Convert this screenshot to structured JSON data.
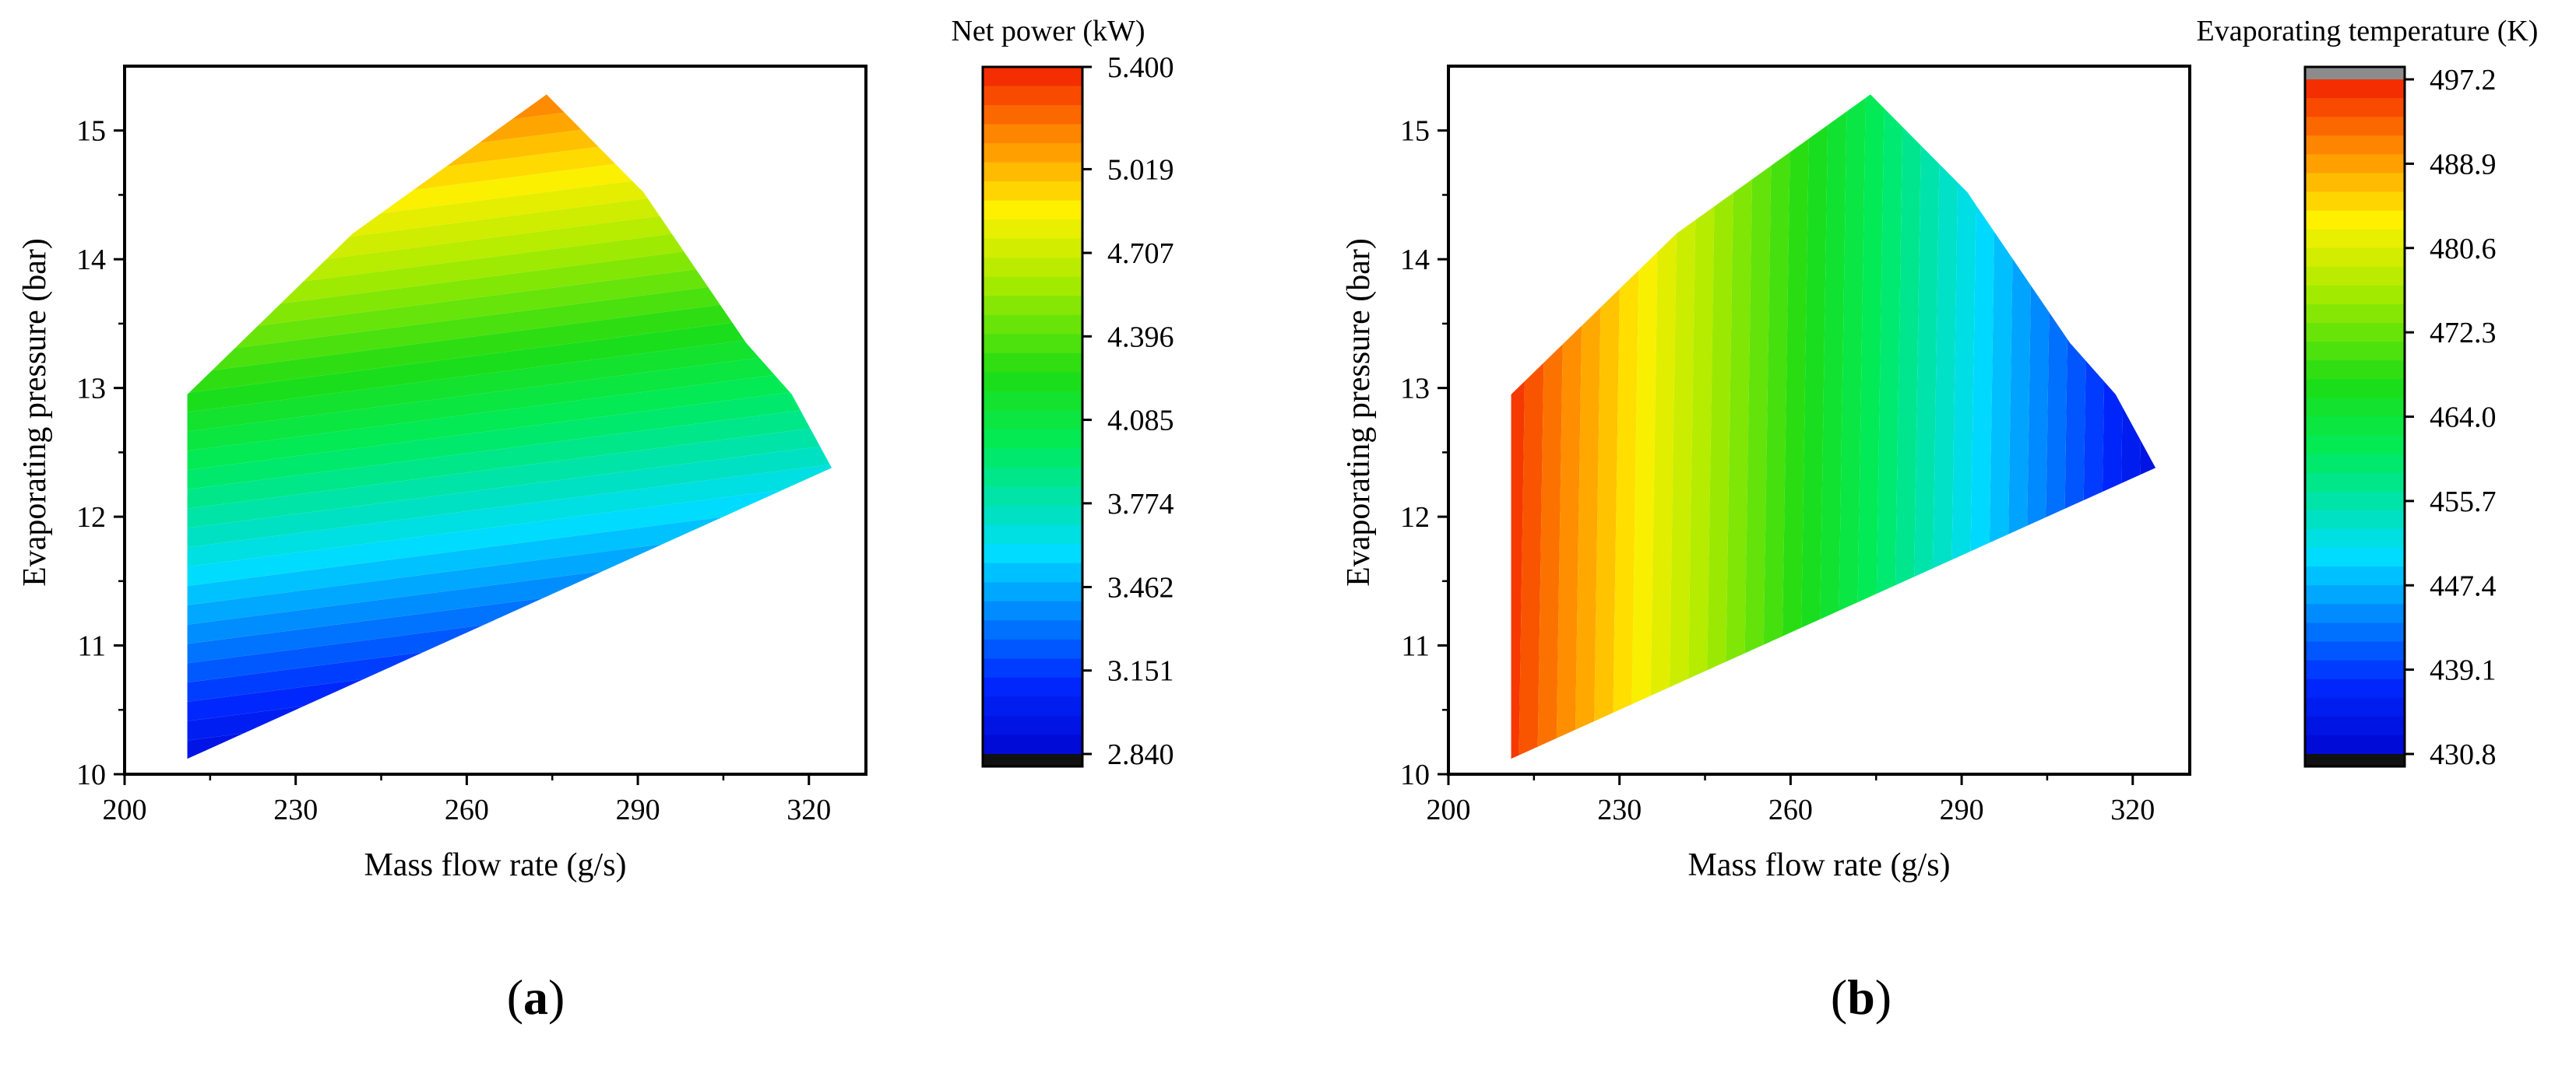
{
  "figure": {
    "panel_labels": [
      {
        "open": "(",
        "letter": "a",
        "close": ")"
      },
      {
        "open": "(",
        "letter": "b",
        "close": ")"
      }
    ]
  },
  "chart_data": [
    {
      "type": "heatmap",
      "panel": "a",
      "xlabel": "Mass flow rate (g/s)",
      "ylabel": "Evaporating pressure (bar)",
      "xlim": [
        200,
        330
      ],
      "ylim": [
        10,
        15.5
      ],
      "xticks": [
        200,
        230,
        260,
        290,
        320
      ],
      "yticks": [
        10,
        11,
        12,
        13,
        14,
        15
      ],
      "domain_boundary": [
        [
          211,
          10.12
        ],
        [
          211,
          12.95
        ],
        [
          240,
          14.2
        ],
        [
          274,
          15.28
        ],
        [
          291,
          14.52
        ],
        [
          309,
          13.35
        ],
        [
          317,
          12.95
        ],
        [
          324,
          12.38
        ]
      ],
      "colorbar": {
        "title": "Net power (kW)",
        "min": 2.84,
        "max": 5.4,
        "tick_labels": [
          "5.400",
          "5.019",
          "4.707",
          "4.396",
          "4.085",
          "3.774",
          "3.462",
          "3.151",
          "2.840"
        ],
        "tick_values": [
          5.4,
          5.019,
          4.707,
          4.396,
          4.085,
          3.774,
          3.462,
          3.151,
          2.84
        ],
        "overflow_color_top": null,
        "underflow_color": "#111111",
        "levels": 36
      },
      "field": {
        "description_values": "rises with evaporating pressure",
        "corners": {
          "low_p": 3.0,
          "high_p": 5.4
        }
      }
    },
    {
      "type": "heatmap",
      "panel": "b",
      "xlabel": "Mass flow rate (g/s)",
      "ylabel": "Evaporating pressure (bar)",
      "xlim": [
        200,
        330
      ],
      "ylim": [
        10,
        15.5
      ],
      "xticks": [
        200,
        230,
        260,
        290,
        320
      ],
      "yticks": [
        10,
        11,
        12,
        13,
        14,
        15
      ],
      "domain_boundary": [
        [
          211,
          10.12
        ],
        [
          211,
          12.95
        ],
        [
          240,
          14.2
        ],
        [
          274,
          15.28
        ],
        [
          291,
          14.52
        ],
        [
          309,
          13.35
        ],
        [
          317,
          12.95
        ],
        [
          324,
          12.38
        ]
      ],
      "colorbar": {
        "title": "Evaporating temperature (K)",
        "min": 430.8,
        "max": 497.2,
        "tick_labels": [
          "497.2",
          "488.9",
          "480.6",
          "472.3",
          "464.0",
          "455.7",
          "447.4",
          "439.1",
          "430.8"
        ],
        "tick_values": [
          497.2,
          488.9,
          480.6,
          472.3,
          464.0,
          455.7,
          447.4,
          439.1,
          430.8
        ],
        "overflow_color_top": "#8c8c8c",
        "underflow_color": "#111111",
        "levels": 36
      },
      "field": {
        "description_values": "falls with mass flow rate",
        "corners": {
          "low_m": 495.0,
          "high_m": 433.0
        }
      }
    }
  ]
}
